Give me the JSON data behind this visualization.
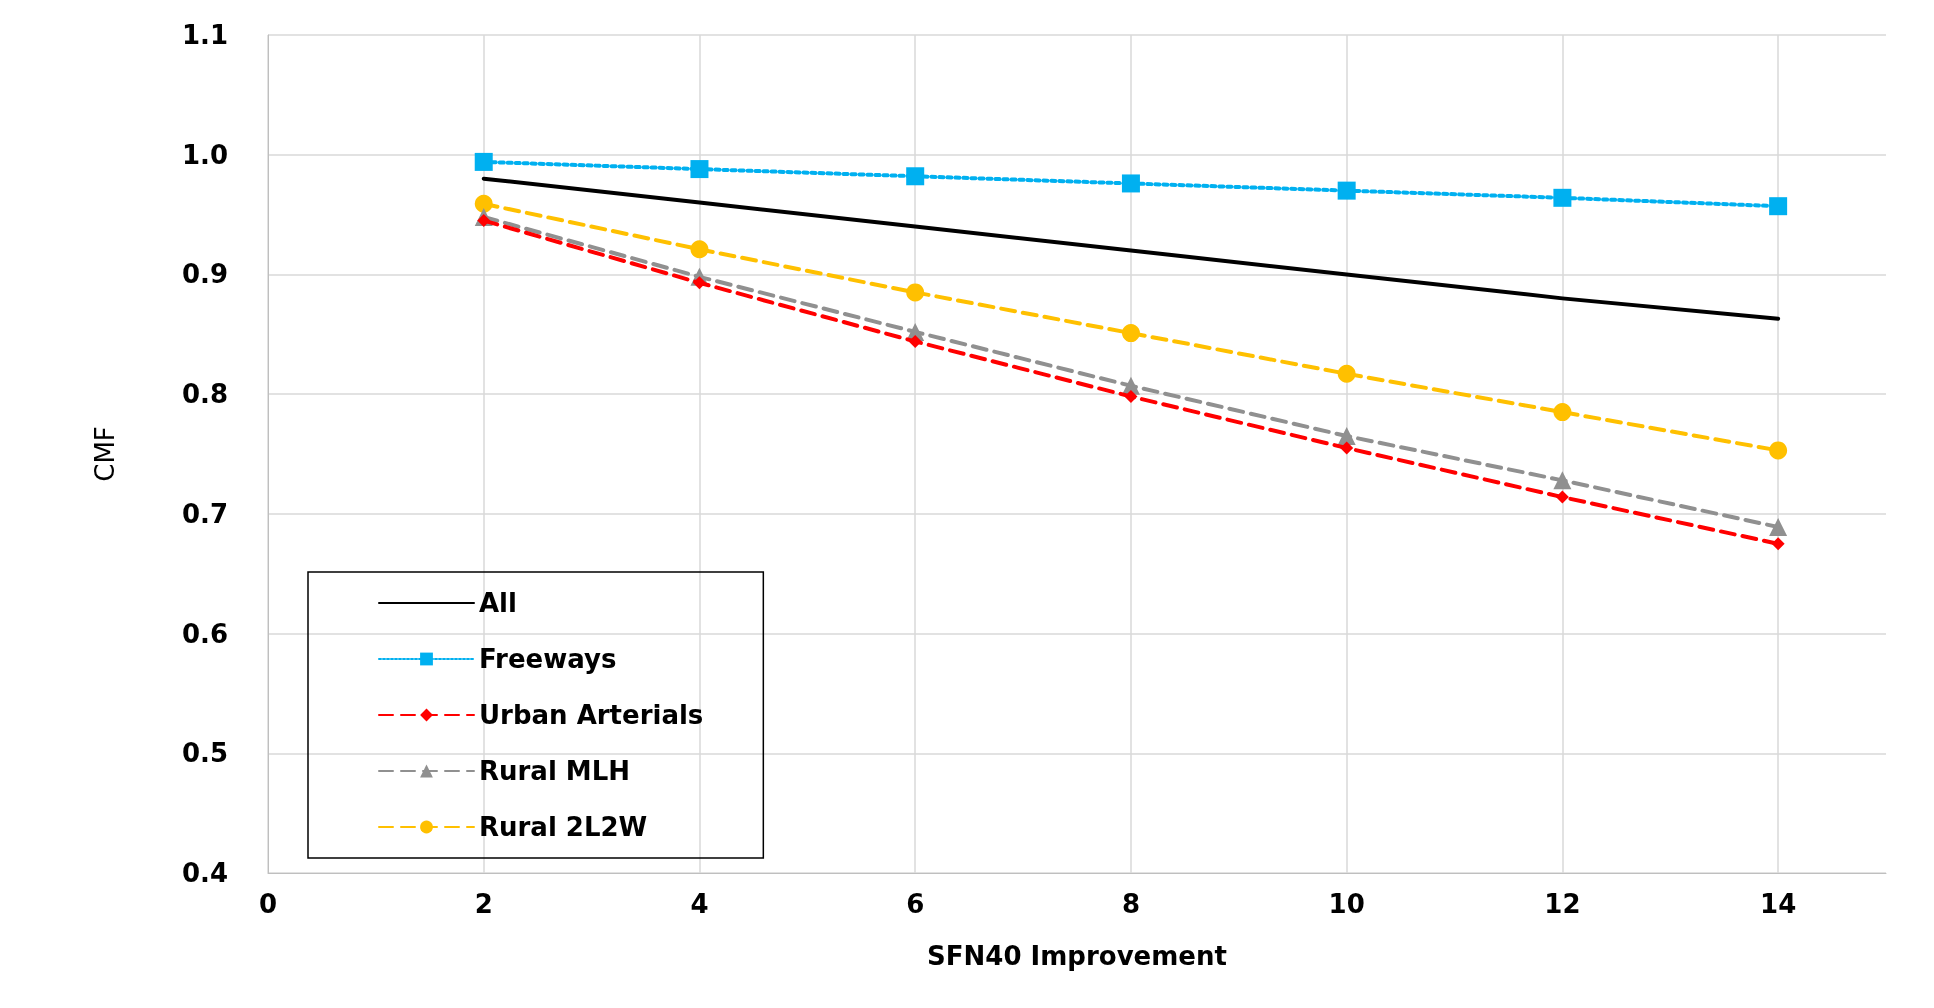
{
  "chart_data": {
    "type": "line",
    "xlabel": "SFN40 Improvement",
    "ylabel": "CMF",
    "x": [
      2,
      4,
      6,
      8,
      10,
      12,
      14
    ],
    "xlim": [
      0,
      15
    ],
    "xticks": [
      0,
      2,
      4,
      6,
      8,
      10,
      12,
      14
    ],
    "ylim": [
      0.4,
      1.1
    ],
    "yticks": [
      0.4,
      0.5,
      0.6,
      0.7,
      0.8,
      0.9,
      {
        "value": 1,
        "label": "1.0"
      },
      1.1
    ],
    "grid": true,
    "legend": "bottom left",
    "series": [
      {
        "name": "All",
        "color": "#000000",
        "marker": "none",
        "line_style": "solid",
        "values": [
          0.98,
          0.96,
          0.94,
          0.92,
          0.9,
          0.88,
          0.863
        ]
      },
      {
        "name": "Freeways",
        "color": "#00b0f0",
        "marker": "square",
        "line_style": "dotted",
        "values": [
          0.994,
          0.988,
          0.982,
          0.976,
          0.97,
          0.964,
          0.957
        ]
      },
      {
        "name": "Urban Arterials",
        "color": "#ff0000",
        "marker": "diamond",
        "line_style": "dashed",
        "values": [
          0.945,
          0.893,
          0.844,
          0.798,
          0.755,
          0.714,
          0.675
        ]
      },
      {
        "name": "Rural MLH",
        "color": "#909090",
        "marker": "triangle",
        "line_style": "dashed",
        "values": [
          0.948,
          0.898,
          0.852,
          0.807,
          0.765,
          0.728,
          0.689
        ]
      },
      {
        "name": "Rural 2L2W",
        "color": "#ffc000",
        "marker": "circle",
        "line_style": "dashed",
        "values": [
          0.959,
          0.921,
          0.885,
          0.851,
          0.817,
          0.785,
          0.753
        ]
      }
    ]
  }
}
